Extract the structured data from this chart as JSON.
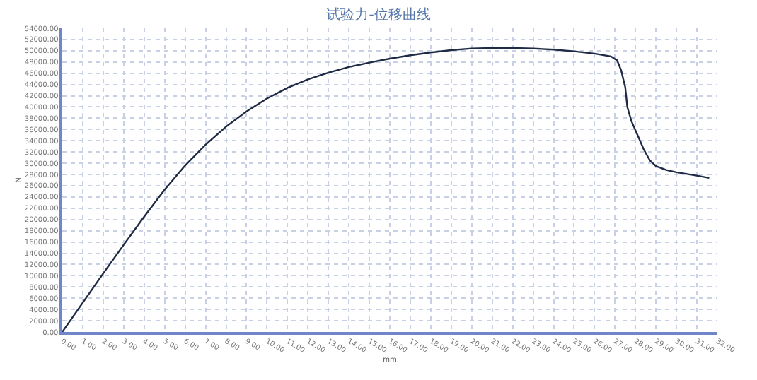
{
  "chart_data": {
    "type": "line",
    "title": "试验力-位移曲线",
    "xlabel": "mm",
    "ylabel": "N",
    "x": [
      0,
      1,
      2,
      3,
      4,
      5,
      6,
      7,
      8,
      9,
      10,
      11,
      12,
      13,
      14,
      15,
      16,
      17,
      18,
      19,
      20,
      21,
      22,
      23,
      24,
      25,
      26,
      26.8,
      27.1,
      27.3,
      27.5,
      27.6,
      27.8,
      28.1,
      28.4,
      28.7,
      29.0,
      29.5,
      30,
      31,
      31.6
    ],
    "series": [
      {
        "color": "#1f2a44",
        "values": [
          0,
          5200,
          10400,
          15500,
          20500,
          25300,
          29600,
          33300,
          36500,
          39200,
          41500,
          43400,
          44900,
          46100,
          47100,
          47900,
          48600,
          49200,
          49700,
          50100,
          50400,
          50500,
          50500,
          50400,
          50200,
          49900,
          49500,
          49000,
          48300,
          46500,
          43500,
          40000,
          37500,
          35000,
          32500,
          30500,
          29500,
          28800,
          28400,
          27800,
          27400
        ]
      }
    ],
    "xlim": [
      0,
      32
    ],
    "ylim": [
      0,
      54000
    ],
    "xticks": [
      {
        "value": 0,
        "label": "0.00"
      },
      {
        "value": 1,
        "label": "1.00"
      },
      {
        "value": 2,
        "label": "2.00"
      },
      {
        "value": 3,
        "label": "3.00"
      },
      {
        "value": 4,
        "label": "4.00"
      },
      {
        "value": 5,
        "label": "5.00"
      },
      {
        "value": 6,
        "label": "6.00"
      },
      {
        "value": 7,
        "label": "7.00"
      },
      {
        "value": 8,
        "label": "8.00"
      },
      {
        "value": 9,
        "label": "9.00"
      },
      {
        "value": 10,
        "label": "10.00"
      },
      {
        "value": 11,
        "label": "11.00"
      },
      {
        "value": 12,
        "label": "12.00"
      },
      {
        "value": 13,
        "label": "13.00"
      },
      {
        "value": 14,
        "label": "14.00"
      },
      {
        "value": 15,
        "label": "15.00"
      },
      {
        "value": 16,
        "label": "16.00"
      },
      {
        "value": 17,
        "label": "17.00"
      },
      {
        "value": 18,
        "label": "18.00"
      },
      {
        "value": 19,
        "label": "19.00"
      },
      {
        "value": 20,
        "label": "20.00"
      },
      {
        "value": 21,
        "label": "21.00"
      },
      {
        "value": 22,
        "label": "22.00"
      },
      {
        "value": 23,
        "label": "23.00"
      },
      {
        "value": 24,
        "label": "24.00"
      },
      {
        "value": 25,
        "label": "25.00"
      },
      {
        "value": 26,
        "label": "26.00"
      },
      {
        "value": 27,
        "label": "27.00"
      },
      {
        "value": 28,
        "label": "28.00"
      },
      {
        "value": 29,
        "label": "29.00"
      },
      {
        "value": 30,
        "label": "30.00"
      },
      {
        "value": 31,
        "label": "31.00"
      },
      {
        "value": 32,
        "label": "32.00"
      }
    ],
    "yticks": [
      {
        "value": 0,
        "label": "0.00"
      },
      {
        "value": 2000,
        "label": "2000.00"
      },
      {
        "value": 4000,
        "label": "4000.00"
      },
      {
        "value": 6000,
        "label": "6000.00"
      },
      {
        "value": 8000,
        "label": "8000.00"
      },
      {
        "value": 10000,
        "label": "10000.00"
      },
      {
        "value": 12000,
        "label": "12000.00"
      },
      {
        "value": 14000,
        "label": "14000.00"
      },
      {
        "value": 16000,
        "label": "16000.00"
      },
      {
        "value": 18000,
        "label": "18000.00"
      },
      {
        "value": 20000,
        "label": "20000.00"
      },
      {
        "value": 22000,
        "label": "22000.00"
      },
      {
        "value": 24000,
        "label": "24000.00"
      },
      {
        "value": 26000,
        "label": "26000.00"
      },
      {
        "value": 28000,
        "label": "28000.00"
      },
      {
        "value": 30000,
        "label": "30000.00"
      },
      {
        "value": 32000,
        "label": "32000.00"
      },
      {
        "value": 34000,
        "label": "34000.00"
      },
      {
        "value": 36000,
        "label": "36000.00"
      },
      {
        "value": 38000,
        "label": "38000.00"
      },
      {
        "value": 40000,
        "label": "40000.00"
      },
      {
        "value": 42000,
        "label": "42000.00"
      },
      {
        "value": 44000,
        "label": "44000.00"
      },
      {
        "value": 46000,
        "label": "46000.00"
      },
      {
        "value": 48000,
        "label": "48000.00"
      },
      {
        "value": 50000,
        "label": "50000.00"
      },
      {
        "value": 52000,
        "label": "52000.00"
      },
      {
        "value": 54000,
        "label": "54000.00"
      }
    ],
    "grid": true,
    "marker": "none",
    "line_style": "solid",
    "legend": false
  }
}
